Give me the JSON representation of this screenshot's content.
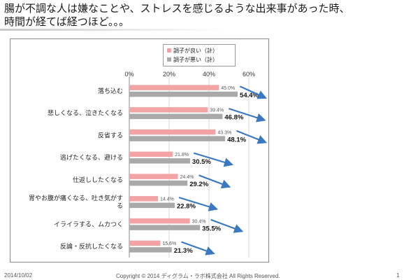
{
  "slide": {
    "title_line1": "腸が不調な人は嫌なことや、ストレスを感じるような出来事があった時、",
    "title_line2": "時間が経てば経つほど。。。"
  },
  "footer": {
    "date": "2014/10/02",
    "copyright": "Copyright © 2014 ディグラム・ラボ株式会社 All Rights Reserved.",
    "page": "1"
  },
  "chart_data": {
    "type": "bar",
    "orientation": "horizontal",
    "categories": [
      "落ち込む",
      "悲しくなる、泣きたくなる",
      "反省する",
      "逃げたくなる、避ける",
      "仕返ししたくなる",
      [
        "胃やお腹が痛くなる、吐き気がす",
        "る"
      ],
      "イライラする、ムカつく",
      "反論・反抗したくなる"
    ],
    "series": [
      {
        "name": "調子が良い（計）",
        "color": "#f4a3a5",
        "values": [
          45.0,
          39.4,
          43.3,
          21.8,
          24.4,
          14.4,
          30.4,
          15.6
        ],
        "labels": [
          "45.0%",
          "39.4%",
          "43.3%",
          "21.8%",
          "24.4%",
          "14.4%",
          "30.4%",
          "15.6%"
        ]
      },
      {
        "name": "調子が悪い（計）",
        "color": "#a9a9a9",
        "values": [
          54.4,
          46.8,
          48.1,
          30.5,
          29.2,
          22.8,
          35.5,
          21.3
        ],
        "labels": [
          "54.4%",
          "46.8%",
          "48.1%",
          "30.5%",
          "29.2%",
          "22.8%",
          "35.5%",
          "21.3%"
        ]
      }
    ],
    "xaxis": {
      "ticks": [
        "0%",
        "20%",
        "40%",
        "60%"
      ],
      "values": [
        0,
        20,
        40,
        60
      ],
      "position": "top"
    },
    "xlim": [
      0,
      60
    ],
    "grid": true,
    "legend": "top-right",
    "annotation_color": "#3b78c2"
  }
}
